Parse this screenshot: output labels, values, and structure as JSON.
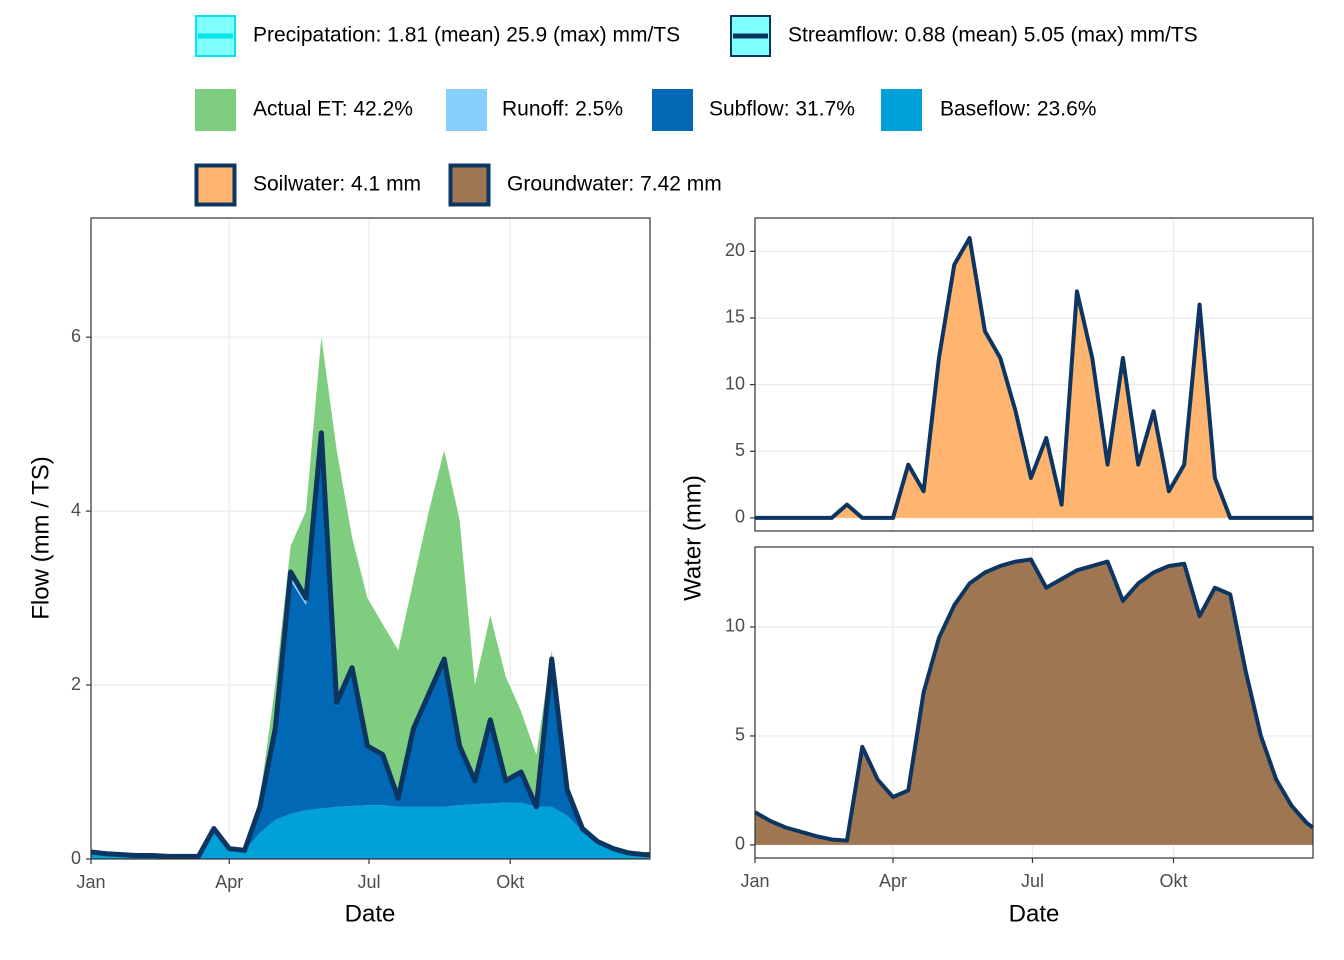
{
  "chart_data": [
    {
      "type": "stacked-area",
      "xlabel": "Date",
      "ylabel": "Flow (mm / TS)",
      "x": [
        1,
        11,
        21,
        31,
        41,
        51,
        61,
        71,
        81,
        91,
        101,
        111,
        121,
        131,
        141,
        151,
        161,
        171,
        181,
        191,
        201,
        211,
        221,
        231,
        241,
        251,
        261,
        271,
        281,
        291,
        301,
        311,
        321,
        331,
        341,
        351,
        361,
        365
      ],
      "xlim": [
        1,
        365
      ],
      "xticks": [
        {
          "value": 1,
          "label": "Jan"
        },
        {
          "value": 91,
          "label": "Apr"
        },
        {
          "value": 182,
          "label": "Jul"
        },
        {
          "value": 274,
          "label": "Okt"
        }
      ],
      "ylim": [
        0,
        7.37
      ],
      "yticks": [
        0,
        2,
        4,
        6
      ],
      "grid": true,
      "series": [
        {
          "name": "Baseflow: 23.6%",
          "color": "#00a0d8",
          "values": [
            0.08,
            0.06,
            0.05,
            0.04,
            0.04,
            0.03,
            0.03,
            0.03,
            0.3,
            0.12,
            0.1,
            0.3,
            0.45,
            0.52,
            0.56,
            0.58,
            0.6,
            0.61,
            0.62,
            0.62,
            0.6,
            0.6,
            0.6,
            0.6,
            0.62,
            0.63,
            0.64,
            0.65,
            0.65,
            0.6,
            0.6,
            0.5,
            0.32,
            0.2,
            0.12,
            0.07,
            0.05,
            0.05
          ]
        },
        {
          "name": "Subflow: 31.7%",
          "color": "#0068b4",
          "values": [
            0,
            0,
            0,
            0,
            0,
            0,
            0,
            0,
            0.05,
            0,
            0,
            0.28,
            1.01,
            2.68,
            2.36,
            4.17,
            1.16,
            1.54,
            0.65,
            0.55,
            0.09,
            0.86,
            1.25,
            1.64,
            0.65,
            0.25,
            0.92,
            0.23,
            0.33,
            0,
            1.64,
            0.29,
            0.03,
            0,
            0,
            0,
            0,
            0
          ]
        },
        {
          "name": "Runoff: 2.5%",
          "color": "#87cefa",
          "values": [
            0,
            0,
            0,
            0,
            0,
            0,
            0,
            0,
            0,
            0,
            0,
            0.02,
            0.04,
            0.1,
            0.08,
            0.15,
            0.04,
            0.05,
            0.03,
            0.03,
            0.01,
            0.04,
            0.05,
            0.06,
            0.03,
            0.02,
            0.04,
            0.02,
            0.02,
            0,
            0.06,
            0.01,
            0,
            0,
            0,
            0,
            0,
            0
          ]
        },
        {
          "name": "Actual ET: 42.2%",
          "color": "#7fcd7f",
          "values": [
            0,
            0,
            0,
            0,
            0,
            0,
            0,
            0,
            0,
            0,
            0,
            0.1,
            0.5,
            0.3,
            1.0,
            1.1,
            2.9,
            1.5,
            1.7,
            1.5,
            1.7,
            1.7,
            2.1,
            2.4,
            2.6,
            1.1,
            1.2,
            1.2,
            0.7,
            0.6,
            0.1,
            0,
            0,
            0,
            0,
            0,
            0,
            0
          ]
        }
      ],
      "lines": [
        {
          "name": "Precipatation: 1.81 (mean) 25.9 (max) mm/TS",
          "color": "#00e5ee"
        },
        {
          "name": "Streamflow: 0.88 (mean) 5.05 (max) mm/TS",
          "color": "#0d3561",
          "values": [
            0.08,
            0.06,
            0.05,
            0.04,
            0.04,
            0.03,
            0.03,
            0.03,
            0.35,
            0.12,
            0.1,
            0.6,
            1.5,
            3.3,
            3.0,
            4.9,
            1.8,
            2.2,
            1.3,
            1.2,
            0.7,
            1.5,
            1.9,
            2.3,
            1.3,
            0.9,
            1.6,
            0.9,
            1.0,
            0.6,
            2.3,
            0.8,
            0.35,
            0.2,
            0.12,
            0.07,
            0.05,
            0.05
          ]
        }
      ]
    },
    {
      "type": "area",
      "ylabel": "Water (mm)",
      "x": [
        1,
        11,
        21,
        31,
        41,
        51,
        61,
        71,
        81,
        91,
        101,
        111,
        121,
        131,
        141,
        151,
        161,
        171,
        181,
        191,
        201,
        211,
        221,
        231,
        241,
        251,
        261,
        271,
        281,
        291,
        301,
        311,
        321,
        331,
        341,
        351,
        361,
        365
      ],
      "xlim": [
        1,
        365
      ],
      "ylim": [
        -0.98,
        22.5
      ],
      "yticks": [
        0,
        5,
        10,
        15,
        20
      ],
      "grid": true,
      "series": [
        {
          "name": "Soilwater: 4.1 mm",
          "color": "#ffb570",
          "line_color": "#0d3561",
          "values": [
            0,
            0,
            0,
            0,
            0,
            0,
            1,
            0,
            0,
            0,
            4,
            2,
            12,
            19,
            21,
            14,
            12,
            8,
            3,
            6,
            1,
            17,
            12,
            4,
            12,
            4,
            8,
            2,
            4,
            16,
            3,
            0,
            0,
            0,
            0,
            0,
            0,
            0
          ]
        }
      ]
    },
    {
      "type": "area",
      "xlabel": "Date",
      "x": [
        1,
        11,
        21,
        31,
        41,
        51,
        61,
        71,
        81,
        91,
        101,
        111,
        121,
        131,
        141,
        151,
        161,
        171,
        181,
        191,
        201,
        211,
        221,
        231,
        241,
        251,
        261,
        271,
        281,
        291,
        301,
        311,
        321,
        331,
        341,
        351,
        361,
        365
      ],
      "xlim": [
        1,
        365
      ],
      "xticks": [
        {
          "value": 1,
          "label": "Jan"
        },
        {
          "value": 91,
          "label": "Apr"
        },
        {
          "value": 182,
          "label": "Jul"
        },
        {
          "value": 274,
          "label": "Okt"
        }
      ],
      "ylim": [
        -0.6,
        13.67
      ],
      "yticks": [
        0,
        5,
        10
      ],
      "grid": true,
      "series": [
        {
          "name": "Groundwater: 7.42 mm",
          "color": "#9e7752",
          "line_color": "#0d3561",
          "values": [
            1.5,
            1.1,
            0.8,
            0.6,
            0.4,
            0.25,
            0.2,
            4.5,
            3.0,
            2.2,
            2.5,
            7,
            9.5,
            11,
            12,
            12.5,
            12.8,
            13,
            13.1,
            11.8,
            12.2,
            12.6,
            12.8,
            13,
            11.2,
            12,
            12.5,
            12.8,
            12.9,
            10.5,
            11.8,
            11.5,
            8,
            5,
            3,
            1.8,
            1.0,
            0.8
          ]
        }
      ]
    }
  ]
}
